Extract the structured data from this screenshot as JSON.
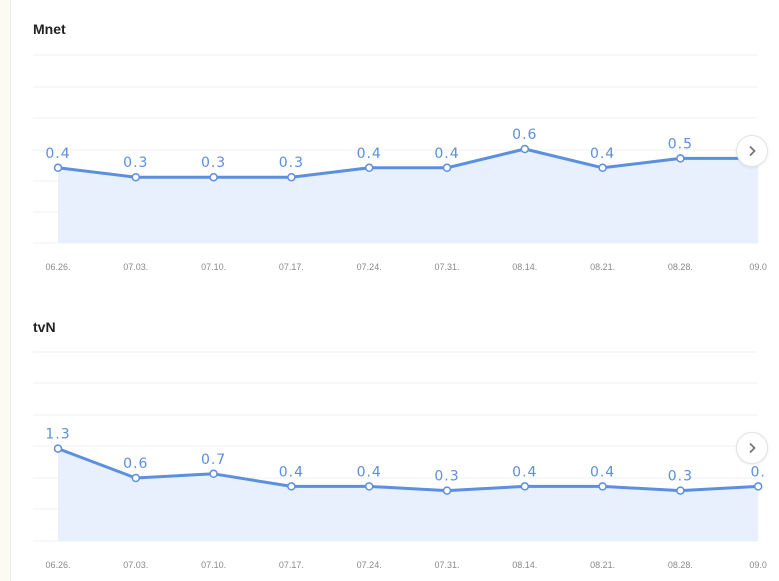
{
  "chart_data": [
    {
      "type": "line",
      "title": "Mnet",
      "categories": [
        "06.26.",
        "07.03.",
        "07.10.",
        "07.17.",
        "07.24.",
        "07.31.",
        "08.14.",
        "08.21.",
        "08.28.",
        "09.0"
      ],
      "values": [
        0.4,
        0.3,
        0.3,
        0.3,
        0.4,
        0.4,
        0.6,
        0.4,
        0.5,
        0.5
      ],
      "value_labels": [
        "0.4",
        "0.3",
        "0.3",
        "0.3",
        "0.4",
        "0.4",
        "0.6",
        "0.4",
        "0.5",
        ""
      ],
      "ylim": [
        -0.4,
        1.6
      ],
      "grid": true,
      "colors": {
        "line": "#5b8fdf",
        "area": "#e9f0fd"
      }
    },
    {
      "type": "line",
      "title": "tvN",
      "categories": [
        "06.26.",
        "07.03.",
        "07.10.",
        "07.17.",
        "07.24.",
        "07.31.",
        "08.14.",
        "08.21.",
        "08.28.",
        "09.0"
      ],
      "values": [
        1.3,
        0.6,
        0.7,
        0.4,
        0.4,
        0.3,
        0.4,
        0.4,
        0.3,
        0.4
      ],
      "value_labels": [
        "1.3",
        "0.6",
        "0.7",
        "0.4",
        "0.4",
        "0.3",
        "0.4",
        "0.4",
        "0.3",
        "0."
      ],
      "ylim": [
        -0.9,
        3.6
      ],
      "grid": true,
      "colors": {
        "line": "#5b8fdf",
        "area": "#e9f0fd"
      }
    }
  ],
  "navigation": {
    "next_icon": "chevron-right-icon"
  }
}
